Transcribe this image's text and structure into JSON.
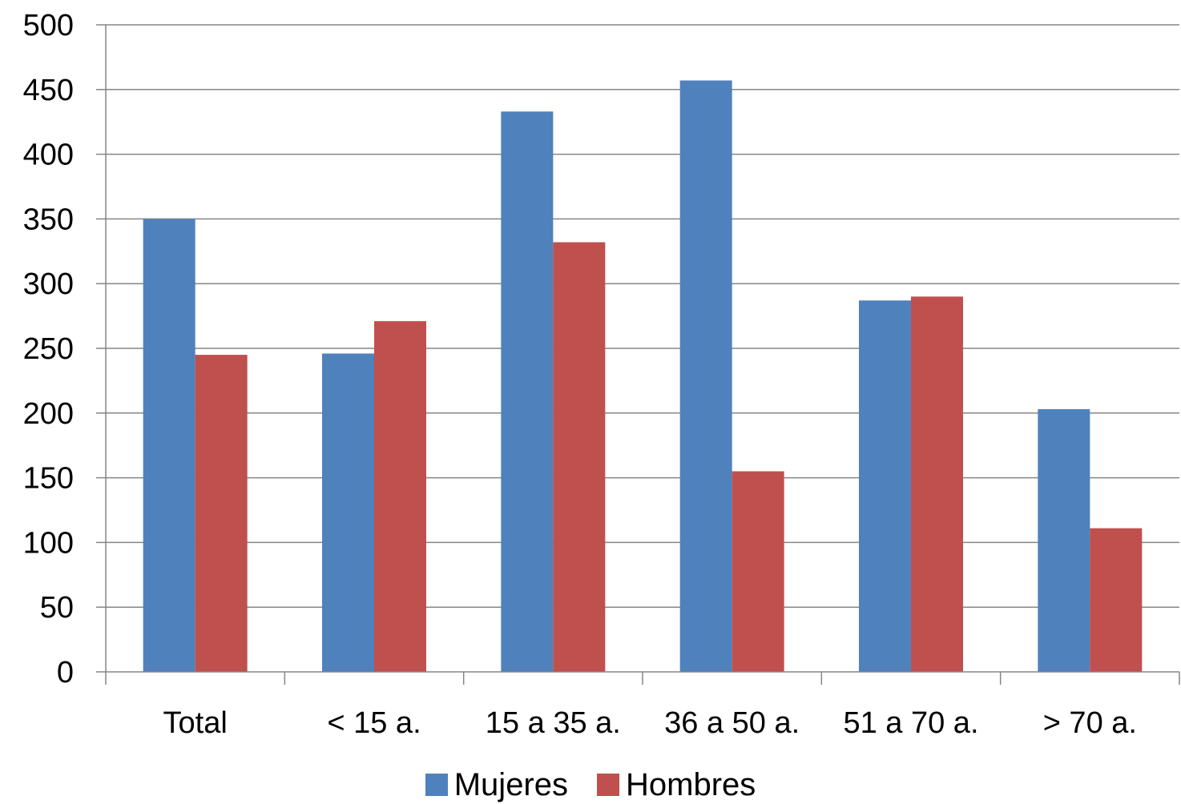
{
  "chart_data": {
    "type": "bar",
    "categories": [
      "Total",
      "< 15 a.",
      "15 a 35 a.",
      "36 a 50 a.",
      "51 a 70 a.",
      "> 70 a."
    ],
    "series": [
      {
        "name": "Mujeres",
        "color": "#4F81BD",
        "values": [
          350,
          246,
          433,
          457,
          287,
          203
        ]
      },
      {
        "name": "Hombres",
        "color": "#C0504D",
        "values": [
          245,
          271,
          332,
          155,
          290,
          111
        ]
      }
    ],
    "yticks": [
      "0",
      "50",
      "100",
      "150",
      "200",
      "250",
      "300",
      "350",
      "400",
      "450",
      "500"
    ],
    "ylim": [
      0,
      500
    ],
    "grid": true,
    "legend_position": "bottom",
    "gridline_color": "#868686"
  }
}
